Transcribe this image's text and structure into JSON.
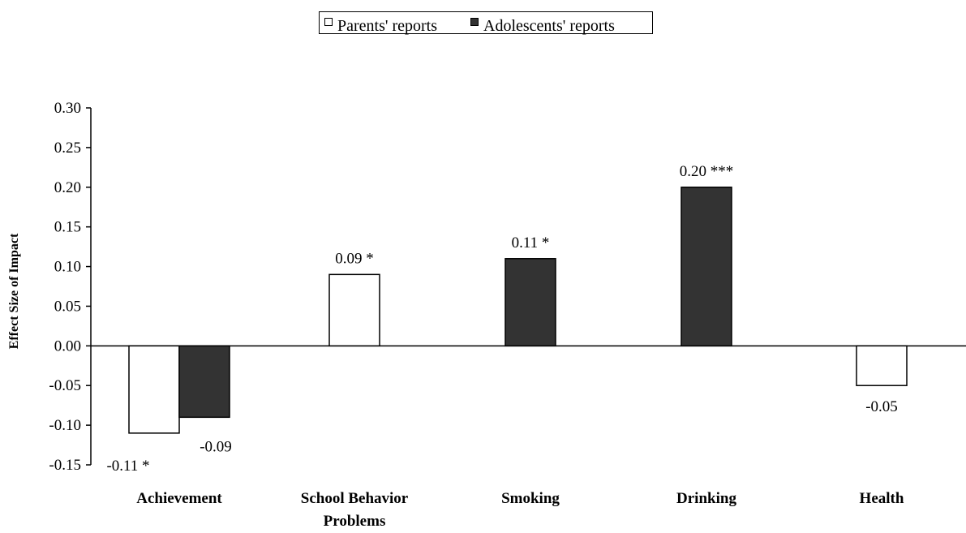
{
  "chart_data": {
    "type": "bar",
    "categories": [
      [
        "Achievement"
      ],
      [
        "School Behavior",
        "Problems"
      ],
      [
        "Smoking"
      ],
      [
        "Drinking"
      ],
      [
        "Health"
      ]
    ],
    "series": [
      {
        "name": "Parents' reports",
        "color": "#ffffff",
        "values": [
          -0.11,
          0.09,
          null,
          null,
          -0.05
        ],
        "labels": [
          "-0.11 *",
          "0.09 *",
          "",
          "",
          "-0.05"
        ]
      },
      {
        "name": "Adolescents' reports",
        "color": "#333333",
        "values": [
          -0.09,
          null,
          0.11,
          0.2,
          null
        ],
        "labels": [
          "-0.09",
          "",
          "0.11 *",
          "0.20 ***",
          ""
        ]
      }
    ],
    "ylabel": "Effect Size of Impact",
    "ylim": [
      -0.15,
      0.3
    ],
    "yticks": [
      "0.30",
      "0.25",
      "0.20",
      "0.15",
      "0.10",
      "0.05",
      "0.00",
      "-0.05",
      "-0.10",
      "-0.15"
    ],
    "grid": false,
    "legend_position": "top"
  }
}
